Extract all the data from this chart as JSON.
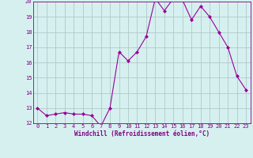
{
  "x": [
    0,
    1,
    2,
    3,
    4,
    5,
    6,
    7,
    8,
    9,
    10,
    11,
    12,
    13,
    14,
    15,
    16,
    17,
    18,
    19,
    20,
    21,
    22,
    23
  ],
  "y": [
    13.0,
    12.5,
    12.6,
    12.7,
    12.6,
    12.6,
    12.5,
    11.8,
    13.0,
    16.7,
    16.1,
    16.7,
    17.7,
    20.2,
    19.4,
    20.2,
    20.1,
    18.8,
    19.7,
    19.0,
    18.0,
    17.0,
    15.1,
    14.2
  ],
  "line_color": "#990099",
  "marker": "D",
  "marker_size": 2.0,
  "bg_color": "#d6f0f0",
  "grid_color": "#b0c8c8",
  "xlabel": "Windchill (Refroidissement éolien,°C)",
  "ylim": [
    12,
    20
  ],
  "xlim": [
    -0.5,
    23.5
  ],
  "yticks": [
    12,
    13,
    14,
    15,
    16,
    17,
    18,
    19,
    20
  ],
  "xticks": [
    0,
    1,
    2,
    3,
    4,
    5,
    6,
    7,
    8,
    9,
    10,
    11,
    12,
    13,
    14,
    15,
    16,
    17,
    18,
    19,
    20,
    21,
    22,
    23
  ],
  "tick_color": "#800080",
  "label_fontsize": 5.5,
  "tick_fontsize": 5.0,
  "spine_color": "#800080",
  "linewidth": 0.8
}
